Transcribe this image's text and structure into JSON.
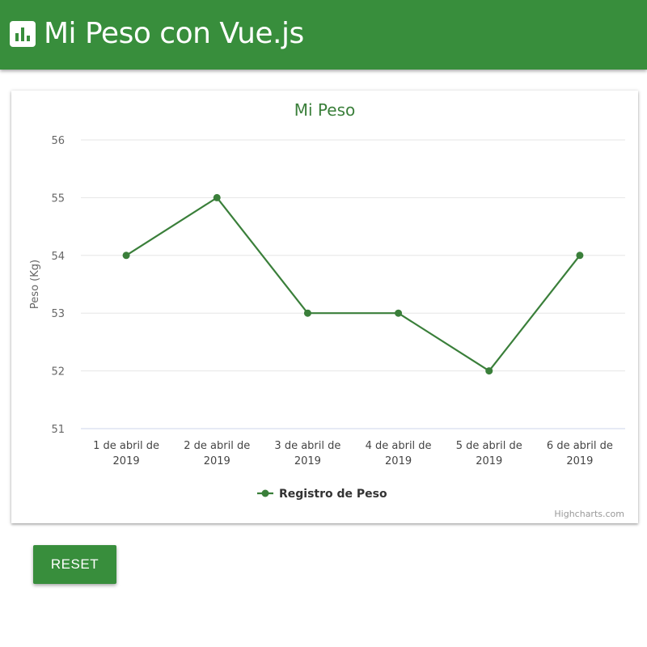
{
  "header": {
    "title": "Mi Peso con Vue.js",
    "icon": "bar-chart-icon"
  },
  "colors": {
    "primary": "#388e3c",
    "series": "#3a7f3a",
    "grid": "#e6e6e6",
    "axis_text": "#666666"
  },
  "chart_data": {
    "type": "line",
    "title": "Mi Peso",
    "ylabel": "Peso (Kg)",
    "xlabel": "",
    "ylim": [
      51,
      56
    ],
    "yticks": [
      51,
      52,
      53,
      54,
      55,
      56
    ],
    "grid": true,
    "legend_position": "bottom-center",
    "categories": [
      [
        "1 de abril de",
        "2019"
      ],
      [
        "2 de abril de",
        "2019"
      ],
      [
        "3 de abril de",
        "2019"
      ],
      [
        "4 de abril de",
        "2019"
      ],
      [
        "5 de abril de",
        "2019"
      ],
      [
        "6 de abril de",
        "2019"
      ]
    ],
    "series": [
      {
        "name": "Registro de Peso",
        "values": [
          54,
          55,
          53,
          53,
          52,
          54
        ]
      }
    ],
    "credits": "Highcharts.com"
  },
  "actions": {
    "reset_label": "RESET"
  }
}
